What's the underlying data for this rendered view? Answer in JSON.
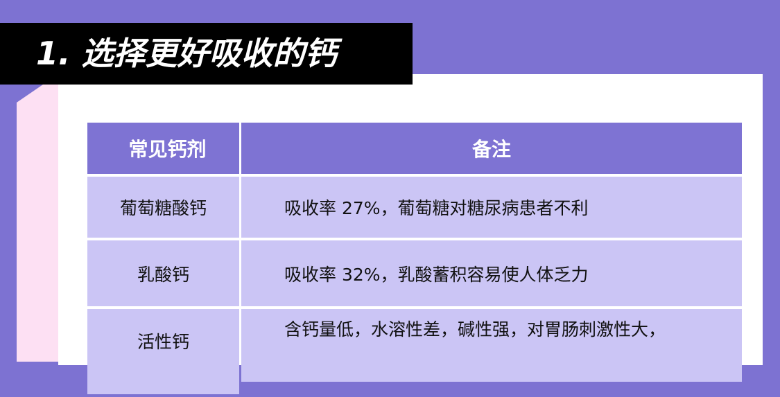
{
  "section_title": "1. 选择更好吸收的钙",
  "table": {
    "headers": [
      "常见钙剂",
      "备注"
    ],
    "rows": [
      {
        "name": "葡萄糖酸钙",
        "note": "吸收率 27%，葡萄糖对糖尿病患者不利"
      },
      {
        "name": "乳酸钙",
        "note": "吸收率 32%，乳酸蓄积容易使人体乏力"
      },
      {
        "name": "活性钙",
        "note": "含钙量低，水溶性差，碱性强，对胃肠刺激性大，"
      }
    ]
  },
  "colors": {
    "background": "#7d72d2",
    "header": "#7e73d3",
    "row": "#cbc5f5",
    "accent_strip": "#fde0f3",
    "banner": "#000000"
  }
}
